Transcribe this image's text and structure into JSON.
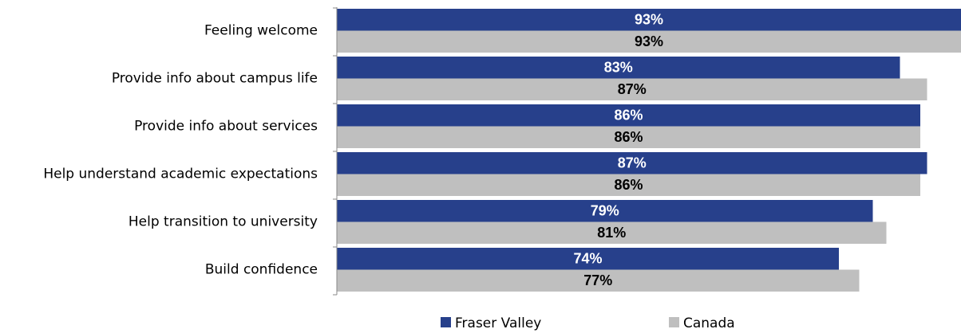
{
  "chart_data": {
    "type": "hbar",
    "categories": [
      "Feeling welcome",
      "Provide info about campus life",
      "Provide info about services",
      "Help understand academic expectations",
      "Help transition to university",
      "Build confidence"
    ],
    "series": [
      {
        "name": "Fraser Valley",
        "color": "#27408b",
        "values": [
          93,
          83,
          86,
          87,
          79,
          74
        ],
        "value_labels": [
          "93%",
          "83%",
          "86%",
          "87%",
          "79%",
          "74%"
        ]
      },
      {
        "name": "Canada",
        "color": "#bfbfbf",
        "values": [
          93,
          87,
          86,
          86,
          81,
          77
        ],
        "value_labels": [
          "93%",
          "87%",
          "86%",
          "86%",
          "81%",
          "77%"
        ]
      }
    ],
    "xlim": [
      0,
      92
    ]
  }
}
